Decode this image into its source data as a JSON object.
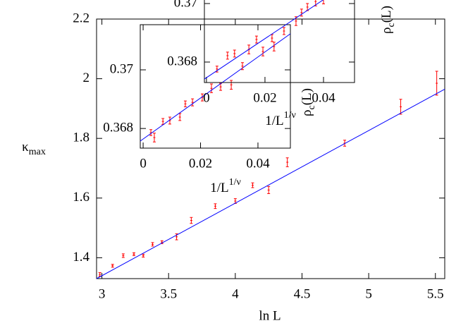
{
  "chart_data": [
    {
      "type": "scatter",
      "xlabel": "ln L",
      "ylabel": {
        "text": "κ",
        "subscript": "max"
      },
      "xlim": [
        2.96,
        5.57
      ],
      "ylim": [
        1.33,
        2.2
      ],
      "xticks": [
        3,
        3.5,
        4,
        4.5,
        5,
        5.5
      ],
      "yticks": [
        1.4,
        1.6,
        1.8,
        2,
        2.2
      ],
      "series": [
        {
          "color": "#ff0000",
          "x": [
            2.985,
            3.08,
            3.16,
            3.24,
            3.31,
            3.38,
            3.45,
            3.56,
            3.67,
            3.85,
            4.0,
            4.13,
            4.25,
            4.39,
            4.82,
            5.24,
            5.51
          ],
          "values": [
            1.344,
            1.373,
            1.407,
            1.412,
            1.407,
            1.445,
            1.452,
            1.47,
            1.525,
            1.573,
            1.59,
            1.643,
            1.627,
            1.72,
            1.784,
            1.906,
            1.985
          ],
          "errors": [
            0.006,
            0.005,
            0.006,
            0.005,
            0.005,
            0.006,
            0.005,
            0.01,
            0.01,
            0.008,
            0.008,
            0.008,
            0.012,
            0.015,
            0.01,
            0.025,
            0.04
          ]
        },
        {
          "type": "line",
          "color": "#0000ff",
          "x": [
            2.96,
            5.57
          ],
          "values": [
            1.33,
            1.965
          ]
        }
      ]
    },
    {
      "type": "scatter",
      "xlabel": {
        "text": "1/L",
        "superscript": "1/ν"
      },
      "ylabel": {
        "text": "ρ",
        "subscript": "c",
        "after": "(L)"
      },
      "xlim": [
        -0.001,
        0.0513
      ],
      "ylim": [
        0.36733,
        0.37154
      ],
      "xticks": [
        0,
        0.02,
        0.04
      ],
      "yticks": [
        0.368,
        0.37
      ],
      "series": [
        {
          "color": "#ff0000",
          "x": [
            0.0027,
            0.0039,
            0.0069,
            0.0093,
            0.0128,
            0.0147,
            0.0172,
            0.0206,
            0.0238,
            0.027,
            0.0307
          ],
          "values": [
            0.36786,
            0.36769,
            0.36824,
            0.36827,
            0.36839,
            0.36884,
            0.36889,
            0.36906,
            0.36937,
            0.36942,
            0.36949
          ],
          "errors": [
            0.0001,
            0.00015,
            0.0001,
            0.00012,
            0.00012,
            0.0001,
            0.00012,
            0.00012,
            0.00015,
            0.00012,
            0.00015
          ]
        },
        {
          "type": "line",
          "color": "#0000ff",
          "x": [
            -0.001,
            0.0513
          ],
          "values": [
            0.36757,
            0.37123
          ]
        }
      ]
    },
    {
      "type": "scatter",
      "xlabel": {
        "text": "1/L",
        "superscript": "1/ν"
      },
      "ylabel": {
        "text": "ρ",
        "subscript": "c",
        "after": "(L)"
      },
      "xlim": [
        -0.0007,
        0.0506
      ],
      "ylim": [
        0.3673,
        0.37152
      ],
      "xticks": [
        0,
        0.02,
        0.04
      ],
      "yticks": [
        0.368,
        0.37
      ],
      "series": [
        {
          "color": "#ff0000",
          "x": [
            0.0036,
            0.0072,
            0.0096,
            0.0123,
            0.0145,
            0.0171,
            0.0193,
            0.0224,
            0.0231,
            0.0265,
            0.0306,
            0.0325,
            0.0345,
            0.0373,
            0.04
          ],
          "values": [
            0.36776,
            0.36822,
            0.36829,
            0.36786,
            0.36843,
            0.36877,
            0.36836,
            0.36882,
            0.36853,
            0.36906,
            0.3694,
            0.36969,
            0.36988,
            0.37007,
            0.37014
          ],
          "errors": [
            0.0001,
            0.00012,
            0.00012,
            0.00012,
            0.00015,
            0.00012,
            0.00015,
            0.00012,
            0.00015,
            0.00012,
            0.00015,
            0.00012,
            0.00012,
            0.00015,
            0.00015
          ]
        },
        {
          "type": "line",
          "color": "#0000ff",
          "x": [
            -0.0007,
            0.0506
          ],
          "values": [
            0.36742,
            0.37084
          ]
        }
      ]
    }
  ]
}
